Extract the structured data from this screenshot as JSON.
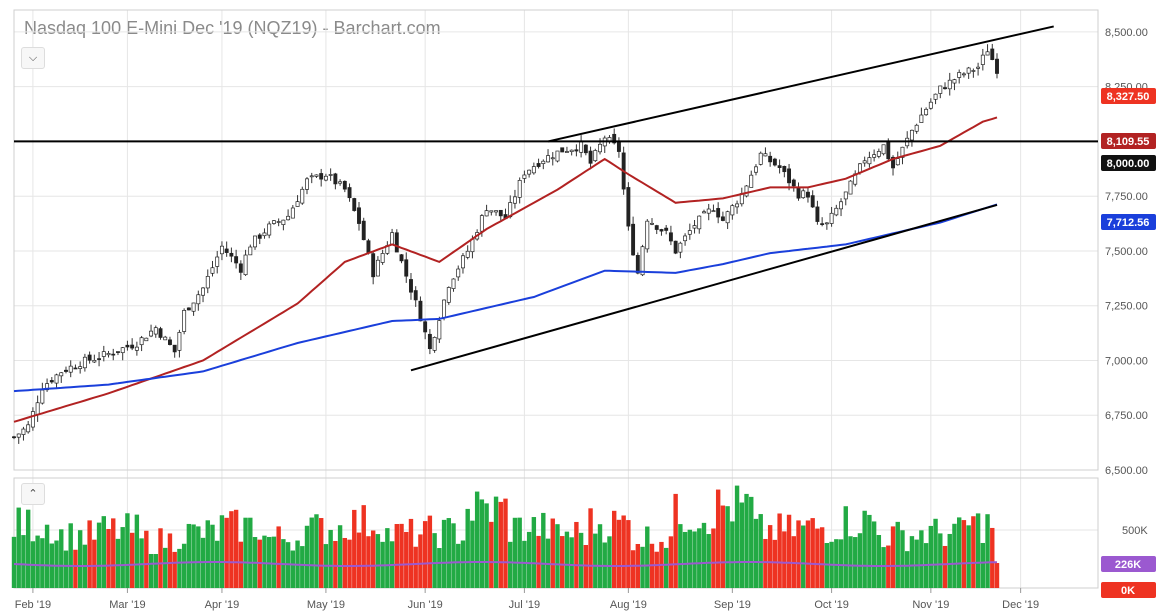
{
  "title": "Nasdaq 100 E-Mini Dec '19 (NQZ19) - Barchart.com",
  "controls": {
    "price_toggle_icon": "chevron-down-icon",
    "volume_toggle_icon": "chevron-up-icon"
  },
  "colors": {
    "up": "#22aa44",
    "down": "#ee3322",
    "ma_short": "#b22222",
    "ma_long": "#1a3fdb",
    "volume_avg": "#9b59d0",
    "grid": "#e6e6e6",
    "trendline": "#000000"
  },
  "chart_data": {
    "type": "candlestick",
    "title": "Nasdaq 100 E-Mini Dec '19 (NQZ19) - Barchart.com",
    "x_labels": [
      "Feb '19",
      "Mar '19",
      "Apr '19",
      "May '19",
      "Jun '19",
      "Jul '19",
      "Aug '19",
      "Sep '19",
      "Oct '19",
      "Nov '19",
      "Dec '19"
    ],
    "price_axis": {
      "ylim": [
        6500,
        8600
      ],
      "ticks": [
        "6,500.00",
        "6,750.00",
        "7,000.00",
        "7,250.00",
        "7,500.00",
        "7,750.00",
        "8,000.00",
        "8,250.00",
        "8,500.00"
      ]
    },
    "volume_axis": {
      "ticks": [
        "500K"
      ]
    },
    "tags": {
      "last_price": "8,327.50",
      "ma_short": "8,109.55",
      "level": "8,000.00",
      "ma_long": "7,712.56",
      "volume_avg": "226K",
      "volume_last": "0K"
    },
    "horizontal_level": 8000,
    "close_path": [
      [
        0,
        6650
      ],
      [
        3,
        6700
      ],
      [
        6,
        6880
      ],
      [
        10,
        6950
      ],
      [
        14,
        6990
      ],
      [
        20,
        7030
      ],
      [
        26,
        7080
      ],
      [
        30,
        7150
      ],
      [
        34,
        7040
      ],
      [
        36,
        7220
      ],
      [
        40,
        7330
      ],
      [
        44,
        7520
      ],
      [
        48,
        7420
      ],
      [
        50,
        7530
      ],
      [
        54,
        7610
      ],
      [
        58,
        7660
      ],
      [
        62,
        7820
      ],
      [
        66,
        7850
      ],
      [
        70,
        7780
      ],
      [
        73,
        7630
      ],
      [
        76,
        7400
      ],
      [
        80,
        7580
      ],
      [
        82,
        7450
      ],
      [
        86,
        7200
      ],
      [
        88,
        7050
      ],
      [
        92,
        7350
      ],
      [
        96,
        7500
      ],
      [
        100,
        7700
      ],
      [
        104,
        7650
      ],
      [
        108,
        7860
      ],
      [
        112,
        7920
      ],
      [
        116,
        7960
      ],
      [
        120,
        7980
      ],
      [
        122,
        7900
      ],
      [
        125,
        8020
      ],
      [
        128,
        7960
      ],
      [
        130,
        7600
      ],
      [
        132,
        7400
      ],
      [
        134,
        7650
      ],
      [
        138,
        7580
      ],
      [
        140,
        7500
      ],
      [
        144,
        7620
      ],
      [
        148,
        7700
      ],
      [
        150,
        7640
      ],
      [
        154,
        7760
      ],
      [
        158,
        7940
      ],
      [
        162,
        7880
      ],
      [
        166,
        7760
      ],
      [
        168,
        7760
      ],
      [
        170,
        7620
      ],
      [
        172,
        7620
      ],
      [
        176,
        7760
      ],
      [
        180,
        7920
      ],
      [
        184,
        7980
      ],
      [
        186,
        7880
      ],
      [
        190,
        8050
      ],
      [
        192,
        8120
      ],
      [
        196,
        8240
      ],
      [
        200,
        8300
      ],
      [
        204,
        8340
      ],
      [
        206,
        8420
      ],
      [
        208,
        8330
      ]
    ],
    "volume_levels": [
      0.65,
      0.45,
      0.55,
      0.35,
      0.5,
      0.62,
      0.4,
      0.58,
      0.7,
      0.48,
      0.52,
      0.95,
      0.6,
      0.5,
      0.68,
      0.42,
      0.85,
      1.0,
      0.55,
      0.6,
      0.72,
      0.45,
      0.5,
      0.66
    ],
    "series": [
      {
        "name": "8,109.55",
        "type": "moving-average",
        "path": [
          [
            0,
            6720
          ],
          [
            20,
            6850
          ],
          [
            40,
            7000
          ],
          [
            60,
            7260
          ],
          [
            70,
            7450
          ],
          [
            80,
            7530
          ],
          [
            90,
            7450
          ],
          [
            100,
            7600
          ],
          [
            115,
            7780
          ],
          [
            125,
            7920
          ],
          [
            130,
            7850
          ],
          [
            140,
            7720
          ],
          [
            150,
            7740
          ],
          [
            160,
            7790
          ],
          [
            168,
            7790
          ],
          [
            176,
            7830
          ],
          [
            186,
            7920
          ],
          [
            196,
            7980
          ],
          [
            205,
            8090
          ],
          [
            208,
            8109.55
          ]
        ]
      },
      {
        "name": "7,712.56",
        "type": "moving-average",
        "path": [
          [
            0,
            6860
          ],
          [
            20,
            6890
          ],
          [
            40,
            6950
          ],
          [
            60,
            7080
          ],
          [
            80,
            7180
          ],
          [
            90,
            7190
          ],
          [
            110,
            7290
          ],
          [
            125,
            7410
          ],
          [
            140,
            7400
          ],
          [
            150,
            7440
          ],
          [
            160,
            7490
          ],
          [
            176,
            7530
          ],
          [
            186,
            7580
          ],
          [
            196,
            7630
          ],
          [
            208,
            7712.56
          ]
        ]
      }
    ],
    "annotations": [
      {
        "name": "upper-trendline",
        "from": [
          113,
          8000
        ],
        "to": [
          220,
          8525
        ]
      },
      {
        "name": "lower-trendline",
        "from": [
          84,
          6955
        ],
        "to": [
          208,
          7710
        ]
      },
      {
        "name": "support-trendline",
        "from": [
          130,
          7220
        ],
        "to": [
          208,
          7710
        ]
      }
    ]
  }
}
